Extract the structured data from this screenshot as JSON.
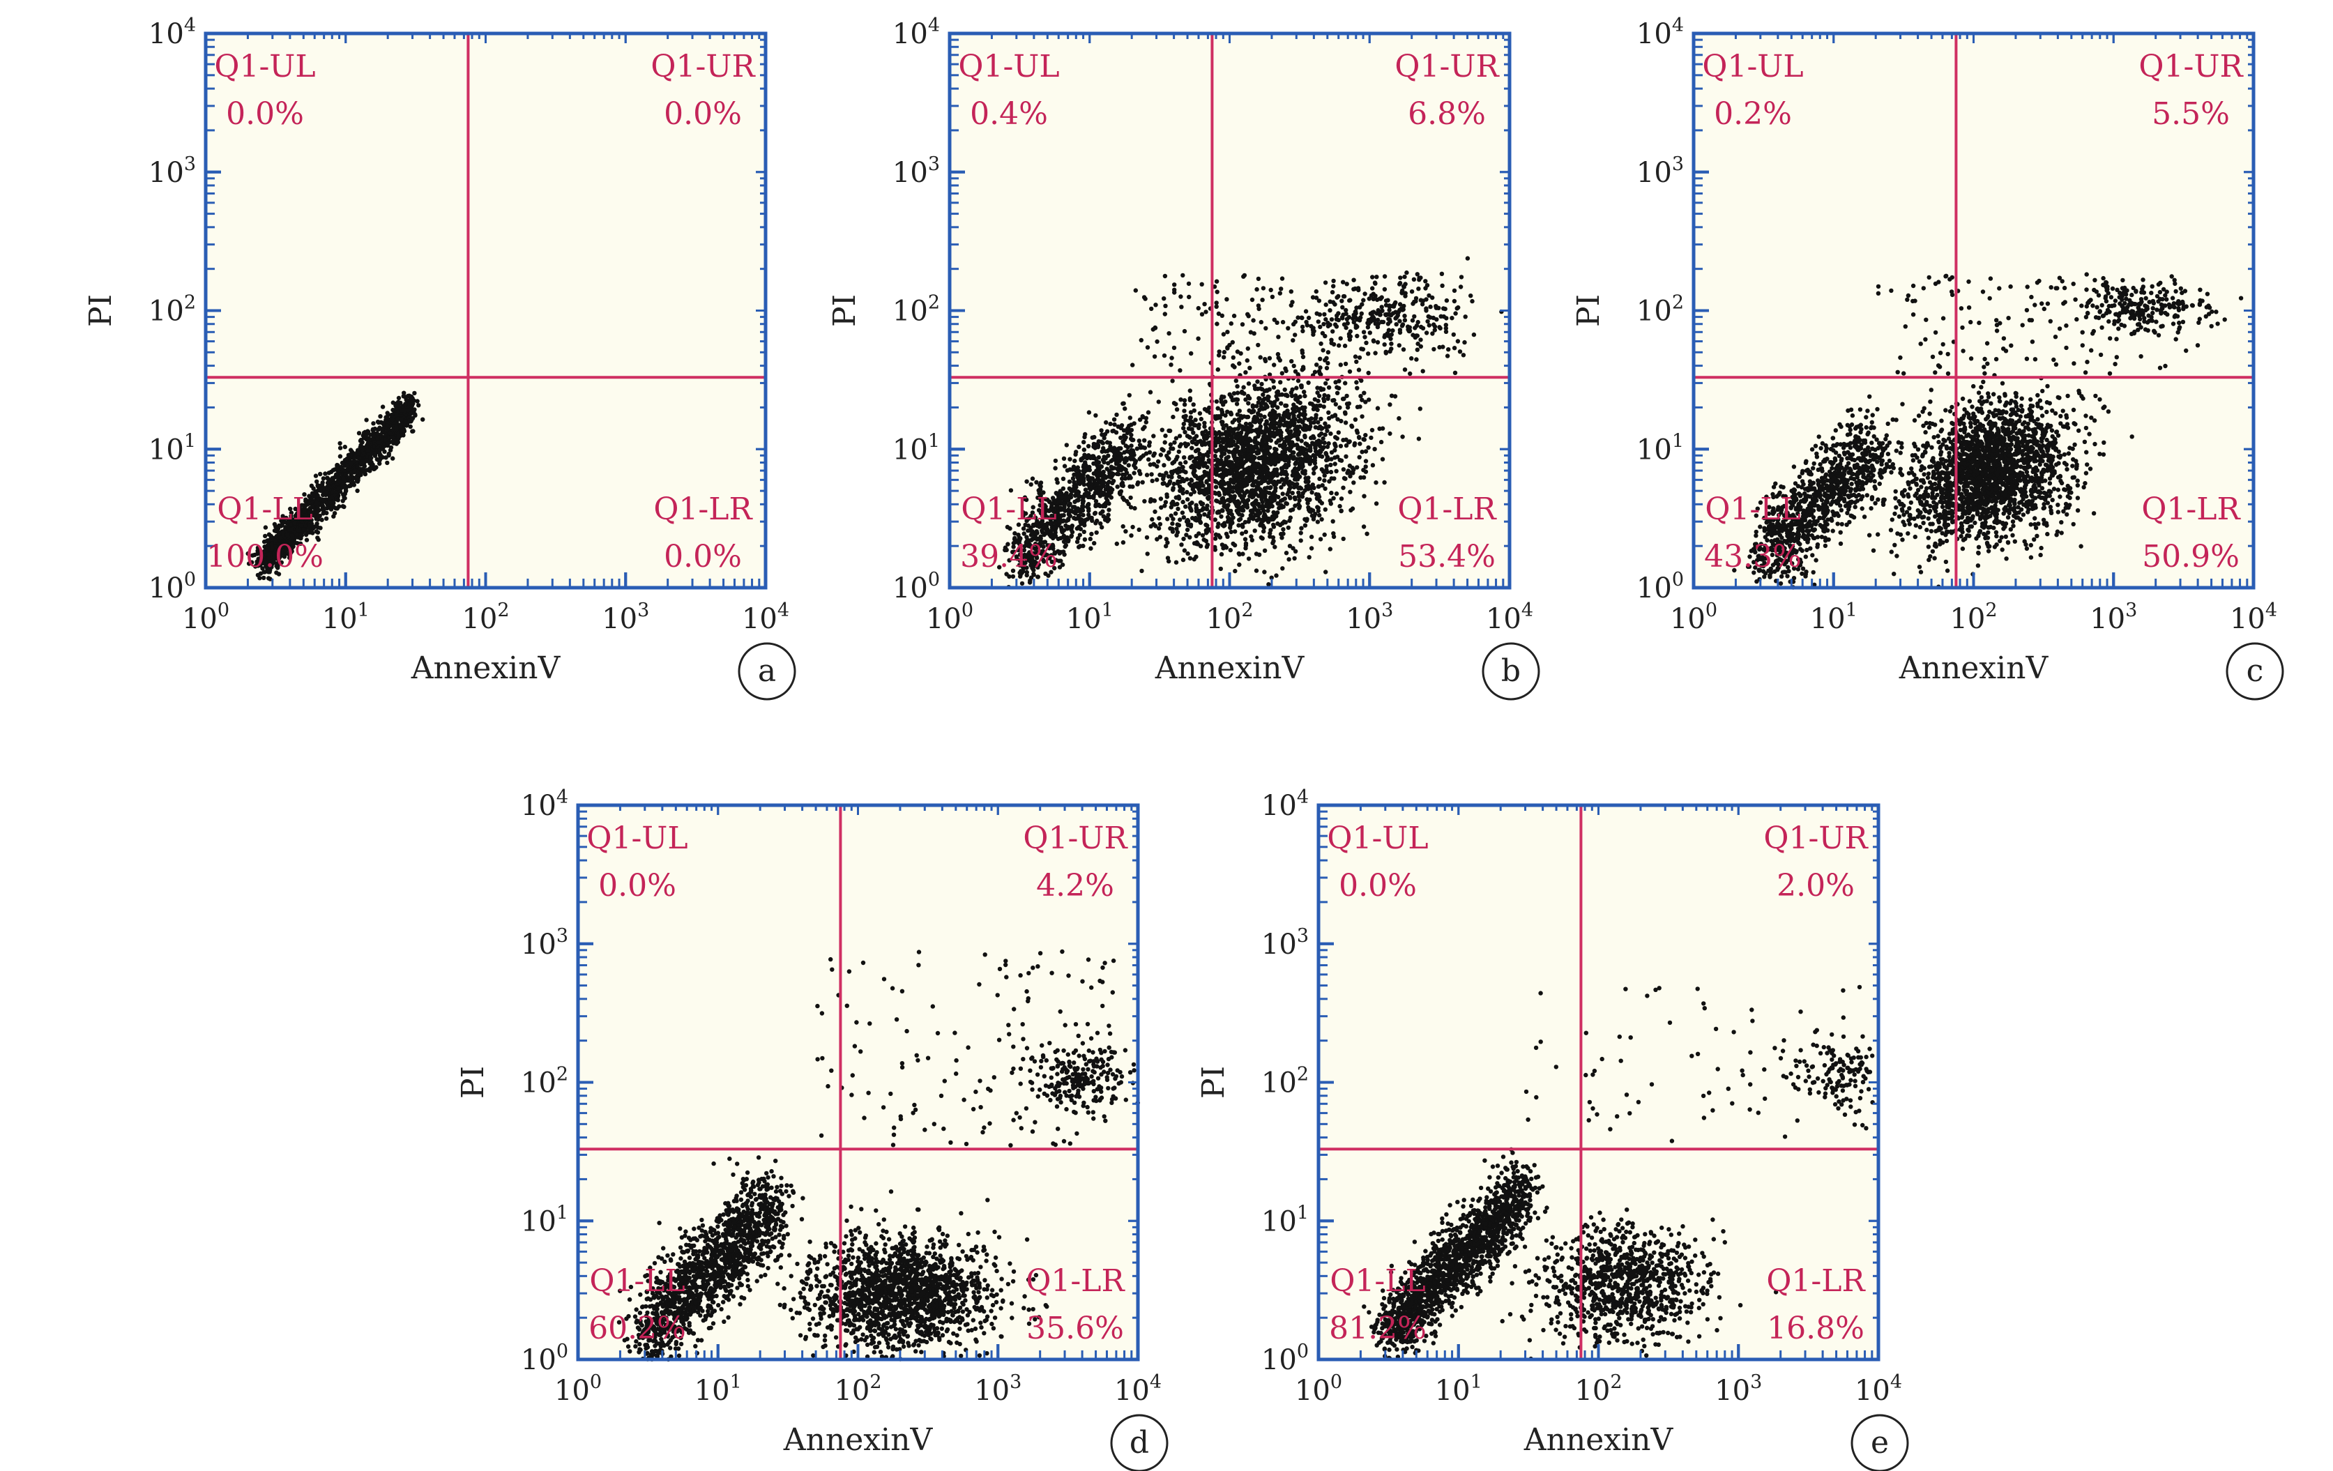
{
  "figure": {
    "colors": {
      "plot_background": "#fdfcef",
      "axis": "#2a5db4",
      "gate_line": "#cf2f62",
      "quadrant_label": "#c42458",
      "dots": "#111111",
      "text": "#222222"
    }
  },
  "chart_data": [
    {
      "panel_letter": "a",
      "type": "scatter",
      "xlabel": "AnnexinV",
      "ylabel": "PI",
      "x_scale": "log",
      "y_scale": "log",
      "xlim": [
        1,
        10000
      ],
      "ylim": [
        1,
        10000
      ],
      "x_ticks": [
        "10^0",
        "10^1",
        "10^2",
        "10^3",
        "10^4"
      ],
      "y_ticks": [
        "10^0",
        "10^1",
        "10^2",
        "10^3",
        "10^4"
      ],
      "gate": {
        "x": 75,
        "y": 33
      },
      "quadrants": [
        {
          "name": "Q1-UL",
          "value": "0.0%"
        },
        {
          "name": "Q1-UR",
          "value": "0.0%"
        },
        {
          "name": "Q1-LL",
          "value": "100.0%"
        },
        {
          "name": "Q1-LR",
          "value": "0.0%"
        }
      ],
      "populations": [
        {
          "kind": "diag",
          "x_from": 2.5,
          "x_to": 30,
          "y_at_start": 1.5,
          "slope": 1.05,
          "spread": 0.07,
          "n": 1500
        }
      ]
    },
    {
      "panel_letter": "b",
      "type": "scatter",
      "xlabel": "AnnexinV",
      "ylabel": "PI",
      "x_scale": "log",
      "y_scale": "log",
      "xlim": [
        1,
        10000
      ],
      "ylim": [
        1,
        10000
      ],
      "x_ticks": [
        "10^0",
        "10^1",
        "10^2",
        "10^3",
        "10^4"
      ],
      "y_ticks": [
        "10^0",
        "10^1",
        "10^2",
        "10^3",
        "10^4"
      ],
      "gate": {
        "x": 75,
        "y": 33
      },
      "quadrants": [
        {
          "name": "Q1-UL",
          "value": "0.4%"
        },
        {
          "name": "Q1-UR",
          "value": "6.8%"
        },
        {
          "name": "Q1-LL",
          "value": "39.4%"
        },
        {
          "name": "Q1-LR",
          "value": "53.4%"
        }
      ],
      "populations": [
        {
          "kind": "diag",
          "x_from": 3,
          "x_to": 20,
          "y_at_start": 1.6,
          "slope": 1.0,
          "spread": 0.16,
          "n": 900
        },
        {
          "kind": "blob",
          "cx": 150,
          "cy": 8,
          "sx": 0.35,
          "sy": 0.3,
          "rho": 0.25,
          "n": 2200
        },
        {
          "kind": "blob",
          "cx": 1200,
          "cy": 90,
          "sx": 0.3,
          "sy": 0.12,
          "rho": 0,
          "n": 260
        },
        {
          "kind": "uniform",
          "x": [
            20,
            5000
          ],
          "y": [
            35,
            180
          ],
          "n": 180
        }
      ]
    },
    {
      "panel_letter": "c",
      "type": "scatter",
      "xlabel": "AnnexinV",
      "ylabel": "PI",
      "x_scale": "log",
      "y_scale": "log",
      "xlim": [
        1,
        10000
      ],
      "ylim": [
        1,
        10000
      ],
      "x_ticks": [
        "10^0",
        "10^1",
        "10^2",
        "10^3",
        "10^4"
      ],
      "y_ticks": [
        "10^0",
        "10^1",
        "10^2",
        "10^3",
        "10^4"
      ],
      "gate": {
        "x": 75,
        "y": 33
      },
      "quadrants": [
        {
          "name": "Q1-UL",
          "value": "0.2%"
        },
        {
          "name": "Q1-UR",
          "value": "5.5%"
        },
        {
          "name": "Q1-LL",
          "value": "43.3%"
        },
        {
          "name": "Q1-LR",
          "value": "50.9%"
        }
      ],
      "populations": [
        {
          "kind": "diag",
          "x_from": 3,
          "x_to": 20,
          "y_at_start": 1.6,
          "slope": 1.0,
          "spread": 0.16,
          "n": 950
        },
        {
          "kind": "blob",
          "cx": 130,
          "cy": 7,
          "sx": 0.3,
          "sy": 0.25,
          "rho": 0.3,
          "n": 2100
        },
        {
          "kind": "blob",
          "cx": 1500,
          "cy": 110,
          "sx": 0.25,
          "sy": 0.1,
          "rho": 0,
          "n": 230
        },
        {
          "kind": "uniform",
          "x": [
            20,
            5000
          ],
          "y": [
            35,
            180
          ],
          "n": 130
        }
      ]
    },
    {
      "panel_letter": "d",
      "type": "scatter",
      "xlabel": "AnnexinV",
      "ylabel": "PI",
      "x_scale": "log",
      "y_scale": "log",
      "xlim": [
        1,
        10000
      ],
      "ylim": [
        1,
        10000
      ],
      "x_ticks": [
        "10^0",
        "10^1",
        "10^2",
        "10^3",
        "10^4"
      ],
      "y_ticks": [
        "10^0",
        "10^1",
        "10^2",
        "10^3",
        "10^4"
      ],
      "gate": {
        "x": 75,
        "y": 33
      },
      "quadrants": [
        {
          "name": "Q1-UL",
          "value": "0.0%"
        },
        {
          "name": "Q1-UR",
          "value": "4.2%"
        },
        {
          "name": "Q1-LL",
          "value": "60.2%"
        },
        {
          "name": "Q1-LR",
          "value": "35.6%"
        }
      ],
      "populations": [
        {
          "kind": "diag",
          "x_from": 3,
          "x_to": 25,
          "y_at_start": 1.5,
          "slope": 1.0,
          "spread": 0.17,
          "n": 1400
        },
        {
          "kind": "blob",
          "cx": 200,
          "cy": 3,
          "sx": 0.33,
          "sy": 0.2,
          "rho": 0,
          "n": 1600
        },
        {
          "kind": "blob",
          "cx": 4000,
          "cy": 110,
          "sx": 0.2,
          "sy": 0.12,
          "rho": 0,
          "n": 220
        },
        {
          "kind": "uniform",
          "x": [
            50,
            8000
          ],
          "y": [
            35,
            900
          ],
          "n": 140
        }
      ]
    },
    {
      "panel_letter": "e",
      "type": "scatter",
      "xlabel": "AnnexinV",
      "ylabel": "PI",
      "x_scale": "log",
      "y_scale": "log",
      "xlim": [
        1,
        10000
      ],
      "ylim": [
        1,
        10000
      ],
      "x_ticks": [
        "10^0",
        "10^1",
        "10^2",
        "10^3",
        "10^4"
      ],
      "y_ticks": [
        "10^0",
        "10^1",
        "10^2",
        "10^3",
        "10^4"
      ],
      "gate": {
        "x": 75,
        "y": 33
      },
      "quadrants": [
        {
          "name": "Q1-UL",
          "value": "0.0%"
        },
        {
          "name": "Q1-UR",
          "value": "2.0%"
        },
        {
          "name": "Q1-LL",
          "value": "81.2%"
        },
        {
          "name": "Q1-LR",
          "value": "16.8%"
        }
      ],
      "populations": [
        {
          "kind": "diag",
          "x_from": 3,
          "x_to": 30,
          "y_at_start": 1.5,
          "slope": 1.05,
          "spread": 0.13,
          "n": 1500
        },
        {
          "kind": "blob",
          "cx": 150,
          "cy": 3.5,
          "sx": 0.3,
          "sy": 0.2,
          "rho": 0,
          "n": 900
        },
        {
          "kind": "blob",
          "cx": 5000,
          "cy": 120,
          "sx": 0.18,
          "sy": 0.12,
          "rho": 0,
          "n": 140
        },
        {
          "kind": "uniform",
          "x": [
            30,
            8000
          ],
          "y": [
            35,
            500
          ],
          "n": 70
        }
      ]
    }
  ]
}
